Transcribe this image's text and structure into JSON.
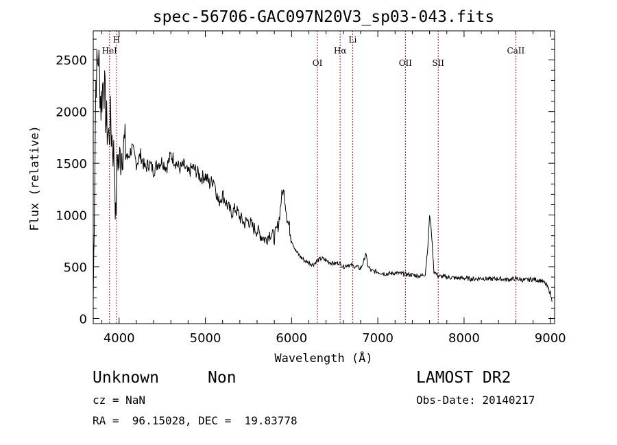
{
  "chart_data": {
    "type": "line",
    "title": "spec-56706-GAC097N20V3_sp03-043.fits",
    "xlabel": "Wavelength (Å)",
    "ylabel": "Flux (relative)",
    "xlim": [
      3700,
      9050
    ],
    "ylim": [
      -50,
      2780
    ],
    "xticks": [
      4000,
      5000,
      6000,
      7000,
      8000,
      9000
    ],
    "xtick_labels": [
      "4000",
      "5000",
      "6000",
      "7000",
      "8000",
      "9000"
    ],
    "yticks": [
      0,
      500,
      1000,
      1500,
      2000,
      2500
    ],
    "ytick_labels": [
      "0",
      "500",
      "1000",
      "1500",
      "2000",
      "2500"
    ],
    "line_color": "#000000",
    "marker_color": "#cc0000",
    "spectral_lines": [
      {
        "name": "HeI",
        "wavelength": 3889,
        "row": 2
      },
      {
        "name": "H",
        "wavelength": 3970,
        "row": 1
      },
      {
        "name": "OI",
        "wavelength": 6300,
        "row": 3
      },
      {
        "name": "Hα",
        "wavelength": 6563,
        "row": 2
      },
      {
        "name": "Li",
        "wavelength": 6708,
        "row": 1
      },
      {
        "name": "OII",
        "wavelength": 7320,
        "row": 3
      },
      {
        "name": "SII",
        "wavelength": 7700,
        "row": 3
      },
      {
        "name": "CaII",
        "wavelength": 8600,
        "row": 2
      }
    ],
    "series": [
      {
        "name": "flux",
        "points": [
          [
            3700,
            180
          ],
          [
            3730,
            2300
          ],
          [
            3760,
            2550
          ],
          [
            3790,
            2050
          ],
          [
            3820,
            2350
          ],
          [
            3850,
            1900
          ],
          [
            3880,
            1750
          ],
          [
            3900,
            1900
          ],
          [
            3930,
            1650
          ],
          [
            3950,
            1450
          ],
          [
            3960,
            900
          ],
          [
            3980,
            1600
          ],
          [
            4000,
            1500
          ],
          [
            4050,
            1700
          ],
          [
            4100,
            1550
          ],
          [
            4150,
            1650
          ],
          [
            4200,
            1500
          ],
          [
            4250,
            1580
          ],
          [
            4300,
            1450
          ],
          [
            4350,
            1500
          ],
          [
            4400,
            1430
          ],
          [
            4450,
            1500
          ],
          [
            4500,
            1520
          ],
          [
            4550,
            1460
          ],
          [
            4600,
            1580
          ],
          [
            4650,
            1520
          ],
          [
            4700,
            1450
          ],
          [
            4750,
            1480
          ],
          [
            4800,
            1400
          ],
          [
            4850,
            1460
          ],
          [
            4900,
            1420
          ],
          [
            4950,
            1360
          ],
          [
            5000,
            1380
          ],
          [
            5050,
            1300
          ],
          [
            5100,
            1350
          ],
          [
            5150,
            1120
          ],
          [
            5200,
            1200
          ],
          [
            5250,
            1100
          ],
          [
            5300,
            1020
          ],
          [
            5350,
            1060
          ],
          [
            5400,
            980
          ],
          [
            5450,
            920
          ],
          [
            5500,
            950
          ],
          [
            5550,
            880
          ],
          [
            5600,
            850
          ],
          [
            5650,
            800
          ],
          [
            5700,
            760
          ],
          [
            5750,
            830
          ],
          [
            5800,
            780
          ],
          [
            5850,
            920
          ],
          [
            5880,
            1150
          ],
          [
            5900,
            1240
          ],
          [
            5920,
            1180
          ],
          [
            5950,
            960
          ],
          [
            5980,
            860
          ],
          [
            6000,
            760
          ],
          [
            6050,
            650
          ],
          [
            6100,
            600
          ],
          [
            6150,
            560
          ],
          [
            6200,
            540
          ],
          [
            6250,
            520
          ],
          [
            6300,
            560
          ],
          [
            6350,
            580
          ],
          [
            6400,
            560
          ],
          [
            6450,
            540
          ],
          [
            6500,
            530
          ],
          [
            6550,
            540
          ],
          [
            6600,
            500
          ],
          [
            6650,
            520
          ],
          [
            6700,
            510
          ],
          [
            6750,
            500
          ],
          [
            6800,
            480
          ],
          [
            6840,
            560
          ],
          [
            6860,
            640
          ],
          [
            6880,
            520
          ],
          [
            6920,
            460
          ],
          [
            7000,
            450
          ],
          [
            7100,
            430
          ],
          [
            7200,
            440
          ],
          [
            7300,
            430
          ],
          [
            7400,
            420
          ],
          [
            7500,
            410
          ],
          [
            7550,
            430
          ],
          [
            7580,
            700
          ],
          [
            7600,
            1000
          ],
          [
            7620,
            860
          ],
          [
            7650,
            460
          ],
          [
            7700,
            410
          ],
          [
            7800,
            400
          ],
          [
            7900,
            390
          ],
          [
            8000,
            390
          ],
          [
            8100,
            380
          ],
          [
            8200,
            390
          ],
          [
            8300,
            380
          ],
          [
            8400,
            385
          ],
          [
            8500,
            375
          ],
          [
            8600,
            385
          ],
          [
            8700,
            370
          ],
          [
            8800,
            380
          ],
          [
            8900,
            365
          ],
          [
            8950,
            330
          ],
          [
            9000,
            250
          ],
          [
            9020,
            160
          ]
        ]
      }
    ]
  },
  "object": {
    "class": "Unknown",
    "subclass": "Non",
    "cz": "cz = NaN",
    "ra_dec": "RA =  96.15028, DEC =  19.83778",
    "survey": "LAMOST DR2",
    "obs_date": "Obs-Date: 20140217"
  }
}
